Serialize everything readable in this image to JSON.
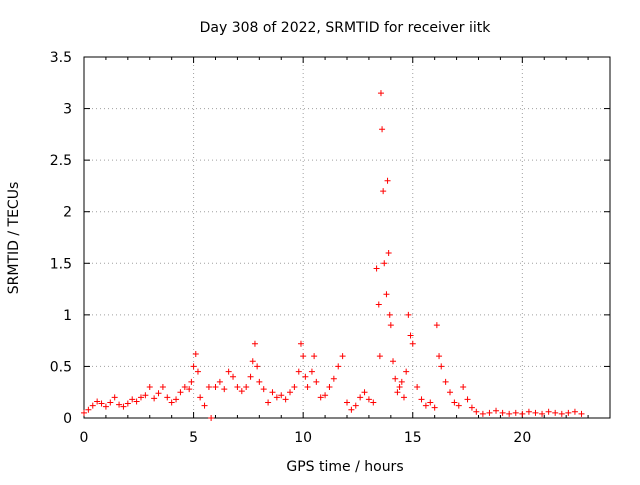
{
  "chart_data": {
    "type": "scatter",
    "title": "Day 308 of 2022, SRMTID for receiver iitk",
    "xlabel": "GPS time / hours",
    "ylabel": "SRMTID / TECUs",
    "xlim": [
      0,
      24
    ],
    "ylim": [
      0,
      3.5
    ],
    "x_ticks": [
      0,
      5,
      10,
      15,
      20
    ],
    "y_ticks": [
      0,
      0.5,
      1,
      1.5,
      2,
      2.5,
      3,
      3.5
    ],
    "x_tick_labels": [
      "0",
      "5",
      "10",
      "15",
      "20"
    ],
    "y_tick_labels": [
      "0",
      "0.5",
      "1",
      "1.5",
      "2",
      "2.5",
      "3",
      "3.5"
    ],
    "grid": true,
    "marker": "+",
    "color": "#ff0000",
    "series": [
      {
        "name": "SRMTID",
        "x": [
          0.0,
          0.2,
          0.4,
          0.6,
          0.8,
          1.0,
          1.2,
          1.4,
          1.6,
          1.8,
          2.0,
          2.2,
          2.4,
          2.6,
          2.8,
          3.0,
          3.2,
          3.4,
          3.6,
          3.8,
          4.0,
          4.2,
          4.4,
          4.6,
          4.8,
          4.9,
          5.0,
          5.1,
          5.2,
          5.3,
          5.5,
          5.7,
          5.8,
          6.0,
          6.2,
          6.4,
          6.6,
          6.8,
          7.0,
          7.2,
          7.4,
          7.6,
          7.7,
          7.8,
          7.9,
          8.0,
          8.2,
          8.4,
          8.6,
          8.8,
          9.0,
          9.2,
          9.4,
          9.6,
          9.8,
          9.9,
          10.0,
          10.1,
          10.2,
          10.4,
          10.5,
          10.6,
          10.8,
          11.0,
          11.2,
          11.4,
          11.6,
          11.8,
          12.0,
          12.2,
          12.4,
          12.6,
          12.8,
          13.0,
          13.2,
          13.35,
          13.45,
          13.5,
          13.55,
          13.6,
          13.65,
          13.7,
          13.8,
          13.85,
          13.9,
          13.95,
          14.0,
          14.1,
          14.2,
          14.3,
          14.4,
          14.5,
          14.6,
          14.7,
          14.8,
          14.9,
          15.0,
          15.2,
          15.4,
          15.6,
          15.8,
          16.0,
          16.1,
          16.2,
          16.3,
          16.5,
          16.7,
          16.9,
          17.1,
          17.3,
          17.5,
          17.7,
          17.9,
          18.2,
          18.5,
          18.8,
          19.1,
          19.4,
          19.7,
          20.0,
          20.3,
          20.6,
          20.9,
          21.2,
          21.5,
          21.8,
          22.1,
          22.4,
          22.7
        ],
        "y": [
          0.05,
          0.08,
          0.12,
          0.16,
          0.14,
          0.11,
          0.15,
          0.2,
          0.13,
          0.11,
          0.14,
          0.18,
          0.16,
          0.2,
          0.22,
          0.3,
          0.19,
          0.24,
          0.3,
          0.2,
          0.15,
          0.18,
          0.25,
          0.3,
          0.28,
          0.35,
          0.5,
          0.62,
          0.45,
          0.2,
          0.12,
          0.3,
          0.0,
          0.3,
          0.35,
          0.28,
          0.45,
          0.4,
          0.3,
          0.26,
          0.3,
          0.4,
          0.55,
          0.72,
          0.5,
          0.35,
          0.28,
          0.15,
          0.25,
          0.2,
          0.22,
          0.18,
          0.25,
          0.3,
          0.45,
          0.72,
          0.6,
          0.4,
          0.3,
          0.45,
          0.6,
          0.35,
          0.2,
          0.22,
          0.3,
          0.38,
          0.5,
          0.6,
          0.15,
          0.08,
          0.12,
          0.2,
          0.25,
          0.18,
          0.15,
          1.45,
          1.1,
          0.6,
          3.15,
          2.8,
          2.2,
          1.5,
          1.2,
          2.3,
          1.6,
          1.0,
          0.9,
          0.55,
          0.38,
          0.25,
          0.3,
          0.35,
          0.2,
          0.45,
          1.0,
          0.8,
          0.72,
          0.3,
          0.18,
          0.12,
          0.15,
          0.1,
          0.9,
          0.6,
          0.5,
          0.35,
          0.25,
          0.15,
          0.12,
          0.3,
          0.18,
          0.1,
          0.06,
          0.04,
          0.05,
          0.07,
          0.05,
          0.04,
          0.05,
          0.04,
          0.06,
          0.05,
          0.04,
          0.06,
          0.05,
          0.04,
          0.05,
          0.06,
          0.04
        ]
      }
    ]
  }
}
